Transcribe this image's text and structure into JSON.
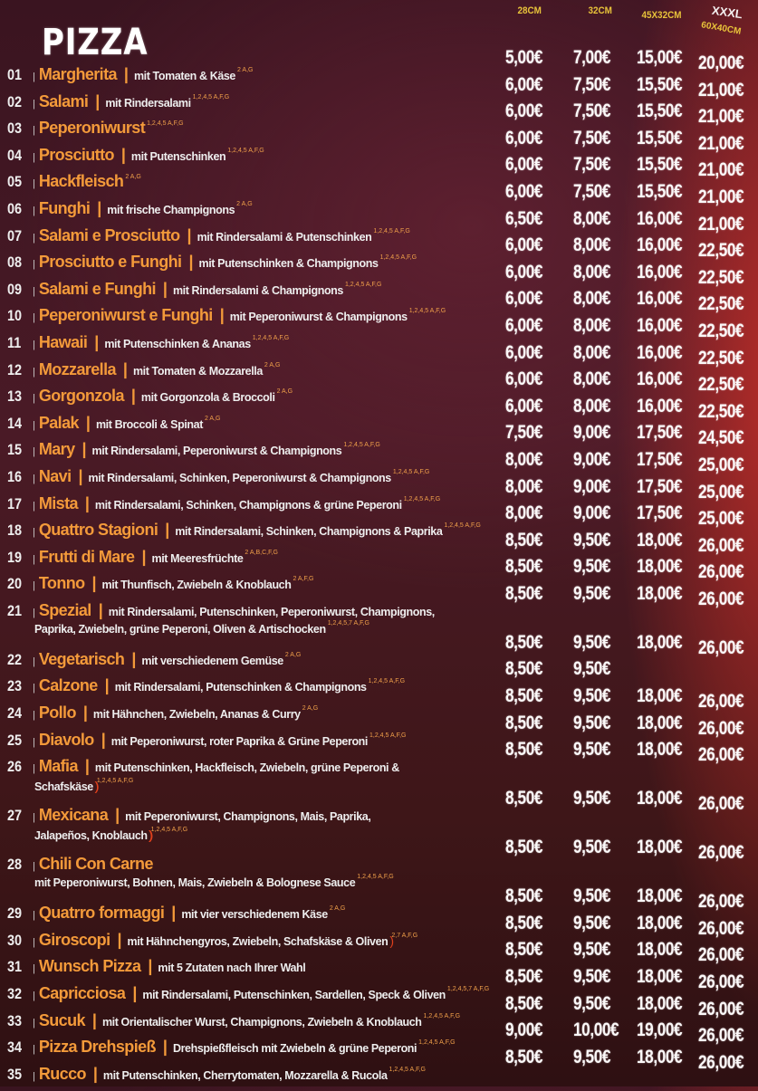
{
  "header": {
    "title": "PIZZA",
    "sizes": [
      "28CM",
      "32CM",
      "45X32CM",
      "XXXL",
      "60X40CM"
    ]
  },
  "colors": {
    "name": "#f39a3a",
    "size_label": "#e8c33a",
    "background": "#3e1618",
    "chili": "#e0401c"
  },
  "items": [
    {
      "num": "01",
      "name": "Margherita",
      "desc": "mit Tomaten & Käse",
      "all": "2 A,G",
      "prices": [
        "5,00€",
        "7,00€",
        "15,00€",
        "20,00€"
      ]
    },
    {
      "num": "02",
      "name": "Salami",
      "desc": "mit Rindersalami",
      "all": "1,2,4,5 A,F,G",
      "prices": [
        "6,00€",
        "7,50€",
        "15,50€",
        "21,00€"
      ]
    },
    {
      "num": "03",
      "name": "Peperoniwurst",
      "desc": "",
      "all": "1,2,4,5 A,F,G",
      "prices": [
        "6,00€",
        "7,50€",
        "15,50€",
        "21,00€"
      ]
    },
    {
      "num": "04",
      "name": "Prosciutto",
      "desc": "mit Putenschinken",
      "all": "1,2,4,5 A,F,G",
      "prices": [
        "6,00€",
        "7,50€",
        "15,50€",
        "21,00€"
      ]
    },
    {
      "num": "05",
      "name": "Hackfleisch",
      "desc": "",
      "all": "2 A,G",
      "prices": [
        "6,00€",
        "7,50€",
        "15,50€",
        "21,00€"
      ]
    },
    {
      "num": "06",
      "name": "Funghi",
      "desc": "mit frische Champignons",
      "all": "2 A,G",
      "prices": [
        "6,00€",
        "7,50€",
        "15,50€",
        "21,00€"
      ]
    },
    {
      "num": "07",
      "name": "Salami e Prosciutto",
      "desc": "mit Rindersalami & Putenschinken",
      "all": "1,2,4,5 A,F,G",
      "prices": [
        "6,50€",
        "8,00€",
        "16,00€",
        "21,00€"
      ]
    },
    {
      "num": "08",
      "name": "Prosciutto e Funghi",
      "desc": "mit Putenschinken & Champignons",
      "all": "1,2,4,5 A,F,G",
      "prices": [
        "6,00€",
        "8,00€",
        "16,00€",
        "22,50€"
      ]
    },
    {
      "num": "09",
      "name": "Salami e Funghi",
      "desc": "mit Rindersalami & Champignons",
      "all": "1,2,4,5 A,F,G",
      "prices": [
        "6,00€",
        "8,00€",
        "16,00€",
        "22,50€"
      ]
    },
    {
      "num": "10",
      "name": "Peperoniwurst e Funghi",
      "desc": "mit Peperoniwurst & Champignons",
      "all": "1,2,4,5 A,F,G",
      "prices": [
        "6,00€",
        "8,00€",
        "16,00€",
        "22,50€"
      ]
    },
    {
      "num": "11",
      "name": "Hawaii",
      "desc": "mit Putenschinken & Ananas",
      "all": "1,2,4,5 A,F,G",
      "prices": [
        "6,00€",
        "8,00€",
        "16,00€",
        "22,50€"
      ]
    },
    {
      "num": "12",
      "name": "Mozzarella",
      "desc": "mit Tomaten & Mozzarella",
      "all": "2 A,G",
      "prices": [
        "6,00€",
        "8,00€",
        "16,00€",
        "22,50€"
      ]
    },
    {
      "num": "13",
      "name": "Gorgonzola",
      "desc": "mit Gorgonzola & Broccoli",
      "all": "2 A,G",
      "prices": [
        "6,00€",
        "8,00€",
        "16,00€",
        "22,50€"
      ]
    },
    {
      "num": "14",
      "name": "Palak",
      "desc": "mit Broccoli & Spinat",
      "all": "2 A,G",
      "prices": [
        "6,00€",
        "8,00€",
        "16,00€",
        "22,50€"
      ]
    },
    {
      "num": "15",
      "name": "Mary",
      "desc": "mit Rindersalami, Peperoniwurst & Champignons",
      "all": "1,2,4,5 A,F,G",
      "prices": [
        "7,50€",
        "9,00€",
        "17,50€",
        "24,50€"
      ]
    },
    {
      "num": "16",
      "name": "Navi",
      "desc": "mit Rindersalami, Schinken, Peperoniwurst & Champignons",
      "all": "1,2,4,5 A,F,G",
      "prices": [
        "8,00€",
        "9,00€",
        "17,50€",
        "25,00€"
      ]
    },
    {
      "num": "17",
      "name": "Mista",
      "desc": "mit Rindersalami, Schinken, Champignons & grüne Peperoni",
      "all": "1,2,4,5 A,F,G",
      "prices": [
        "8,00€",
        "9,00€",
        "17,50€",
        "25,00€"
      ]
    },
    {
      "num": "18",
      "name": "Quattro Stagioni",
      "desc": "mit Rindersalami, Schinken, Champignons & Paprika",
      "all": "1,2,4,5 A,F,G",
      "prices": [
        "8,00€",
        "9,00€",
        "17,50€",
        "25,00€"
      ]
    },
    {
      "num": "19",
      "name": "Frutti di Mare",
      "desc": "mit Meeresfrüchte",
      "all": "2 A,B,C,F,G",
      "prices": [
        "8,50€",
        "9,50€",
        "18,00€",
        "26,00€"
      ]
    },
    {
      "num": "20",
      "name": "Tonno",
      "desc": "mit Thunfisch, Zwiebeln & Knoblauch",
      "all": "2 A,F,G",
      "prices": [
        "8,50€",
        "9,50€",
        "18,00€",
        "26,00€"
      ]
    },
    {
      "num": "21",
      "name": "Spezial",
      "desc": "mit Rindersalami, Putenschinken, Peperoniwurst, Champignons,",
      "desc2": "Paprika, Zwiebeln, grüne Peperoni, Oliven & Artischocken",
      "all": "1,2,4,5,7 A,F,G",
      "prices": [
        "8,50€",
        "9,50€",
        "18,00€",
        "26,00€"
      ]
    },
    {
      "num": "22",
      "name": "Vegetarisch",
      "desc": "mit verschiedenem Gemüse",
      "all": "2 A,G",
      "prices": [
        "8,50€",
        "9,50€",
        "18,00€",
        "26,00€"
      ]
    },
    {
      "num": "23",
      "name": "Calzone",
      "desc": "mit Rindersalami, Putenschinken & Champignons",
      "all": "1,2,4,5 A,F,G",
      "prices": [
        "8,50€",
        "9,50€"
      ]
    },
    {
      "num": "24",
      "name": "Pollo",
      "desc": "mit Hähnchen, Zwiebeln, Ananas & Curry",
      "all": "2 A,G",
      "prices": [
        "8,50€",
        "9,50€",
        "18,00€",
        "26,00€"
      ]
    },
    {
      "num": "25",
      "name": "Diavolo",
      "desc": "mit Peperoniwurst, roter Paprika & Grüne Peperoni",
      "all": "1,2,4,5 A,F,G",
      "prices": [
        "8,50€",
        "9,50€",
        "18,00€",
        "26,00€"
      ]
    },
    {
      "num": "26",
      "name": "Mafia",
      "desc": "mit Putenschinken, Hackfleisch, Zwiebeln, grüne Peperoni &",
      "desc2": "Schafskäse",
      "chili": 2,
      "all": "1,2,4,5 A,F,G",
      "prices": [
        "8,50€",
        "9,50€",
        "18,00€",
        "26,00€"
      ]
    },
    {
      "num": "27",
      "name": "Mexicana",
      "desc": "mit Peperoniwurst, Champignons, Mais, Paprika,",
      "desc2": "Jalapeños, Knoblauch",
      "chili": 3,
      "all": "1,2,4,5 A,F,G",
      "prices": [
        "8,50€",
        "9,50€",
        "18,00€",
        "26,00€"
      ]
    },
    {
      "num": "28",
      "name": "Chili Con Carne",
      "desc": "",
      "desc2": "mit Peperoniwurst, Bohnen, Mais, Zwiebeln & Bolognese Sauce",
      "all": "1,2,4,5 A,F,G",
      "prices": [
        "8,50€",
        "9,50€",
        "18,00€",
        "26,00€"
      ]
    },
    {
      "num": "29",
      "name": "Quatrro formaggi",
      "desc": "mit vier verschiedenem Käse",
      "all": "2 A,G",
      "prices": [
        "8,50€",
        "9,50€",
        "18,00€",
        "26,00€"
      ]
    },
    {
      "num": "30",
      "name": "Giroscopi",
      "desc": "mit Hähnchengyros, Zwiebeln, Schafskäse & Oliven",
      "chili": 1,
      "all": "2,7 A,F,G",
      "prices": [
        "8,50€",
        "9,50€",
        "18,00€",
        "26,00€"
      ]
    },
    {
      "num": "31",
      "name": "Wunsch Pizza",
      "desc": "mit 5 Zutaten nach Ihrer Wahl",
      "all": "",
      "prices": [
        "8,50€",
        "9,50€",
        "18,00€",
        "26,00€"
      ]
    },
    {
      "num": "32",
      "name": "Capricciosa",
      "desc": "mit Rindersalami, Putenschinken, Sardellen, Speck & Oliven",
      "all": "1,2,4,5,7 A,F,G",
      "prices": [
        "8,50€",
        "9,50€",
        "18,00€",
        "26,00€"
      ]
    },
    {
      "num": "33",
      "name": "Sucuk",
      "desc": "mit Orientalischer Wurst, Champignons, Zwiebeln & Knoblauch",
      "all": "1,2,4,5 A,F,G",
      "prices": [
        "8,50€",
        "9,50€",
        "18,00€",
        "26,00€"
      ]
    },
    {
      "num": "34",
      "name": "Pizza Drehspieß",
      "desc": "Drehspießfleisch mit Zwiebeln & grüne Peperoni",
      "all": "1,2,4,5 A,F,G",
      "prices": [
        "9,00€",
        "10,00€",
        "19,00€",
        "26,00€"
      ]
    },
    {
      "num": "35",
      "name": "Rucco",
      "desc": "mit Putenschinken, Cherrytomaten, Mozzarella & Rucola",
      "all": "1,2,4,5 A,F,G",
      "prices": [
        "8,50€",
        "9,50€",
        "18,00€",
        "26,00€"
      ]
    }
  ]
}
